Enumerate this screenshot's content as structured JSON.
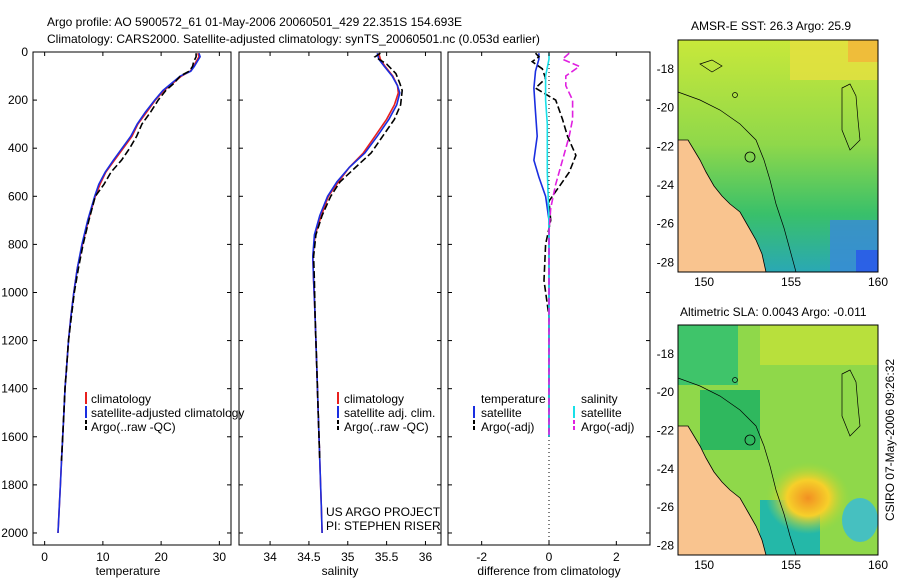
{
  "title_line1": "Argo profile: AO 5900572_61 01-May-2006 20060501_429 22.351S 154.693E",
  "title_line2": "Climatology: CARS2000. Satellite-adjusted climatology: synTS_20060501.nc (0.053d earlier)",
  "side_stamp": "CSIRO 07-May-2006 09:26:32",
  "colors": {
    "climatology": "#e8201e",
    "satellite": "#1a2ee0",
    "argo": "#000000",
    "sat_sal": "#18e0e8",
    "argo_sal": "#e020e0"
  },
  "chart_data": [
    {
      "type": "line",
      "xlabel": "temperature",
      "xlim": [
        -2,
        32
      ],
      "xticks": [
        0,
        10,
        20,
        30
      ],
      "ylim": [
        2050,
        0
      ],
      "yticks": [
        0,
        200,
        400,
        600,
        800,
        1000,
        1200,
        1400,
        1600,
        1800,
        2000
      ],
      "legend": [
        "climatology",
        "satellite-adjusted climatology",
        "Argo(..raw -QC)"
      ],
      "series": [
        {
          "name": "climatology",
          "color": "climatology",
          "dash": false,
          "points": [
            [
              26.3,
              5
            ],
            [
              26.5,
              20
            ],
            [
              26,
              40
            ],
            [
              25.6,
              60
            ],
            [
              25,
              80
            ],
            [
              23.5,
              100
            ],
            [
              22,
              130
            ],
            [
              20.5,
              160
            ],
            [
              19,
              200
            ],
            [
              17.5,
              250
            ],
            [
              16,
              300
            ],
            [
              15,
              350
            ],
            [
              13.5,
              400
            ],
            [
              12,
              450
            ],
            [
              10.5,
              500
            ],
            [
              9.5,
              550
            ],
            [
              8.7,
              600
            ],
            [
              7.5,
              700
            ],
            [
              6.5,
              800
            ],
            [
              5.6,
              900
            ],
            [
              5,
              1000
            ],
            [
              4.5,
              1100
            ],
            [
              4.1,
              1200
            ],
            [
              3.8,
              1300
            ],
            [
              3.5,
              1400
            ],
            [
              3.3,
              1500
            ],
            [
              3.1,
              1600
            ],
            [
              2.9,
              1700
            ],
            [
              2.7,
              1800
            ],
            [
              2.5,
              1900
            ],
            [
              2.3,
              2000
            ]
          ]
        },
        {
          "name": "satellite",
          "color": "satellite",
          "dash": false,
          "points": [
            [
              26.5,
              5
            ],
            [
              26.7,
              20
            ],
            [
              26.2,
              40
            ],
            [
              25.7,
              60
            ],
            [
              25.1,
              80
            ],
            [
              23.3,
              100
            ],
            [
              21.8,
              130
            ],
            [
              20.3,
              160
            ],
            [
              18.9,
              200
            ],
            [
              17.3,
              250
            ],
            [
              15.9,
              300
            ],
            [
              14.8,
              350
            ],
            [
              13.3,
              400
            ],
            [
              11.8,
              450
            ],
            [
              10.4,
              500
            ],
            [
              9.3,
              550
            ],
            [
              8.6,
              600
            ],
            [
              7.4,
              700
            ],
            [
              6.4,
              800
            ],
            [
              5.6,
              900
            ],
            [
              5,
              1000
            ],
            [
              4.5,
              1100
            ],
            [
              4.1,
              1200
            ],
            [
              3.8,
              1300
            ],
            [
              3.5,
              1400
            ],
            [
              3.3,
              1500
            ],
            [
              3.1,
              1600
            ],
            [
              2.9,
              1700
            ],
            [
              2.7,
              1800
            ],
            [
              2.5,
              1900
            ],
            [
              2.3,
              2000
            ]
          ]
        },
        {
          "name": "Argo",
          "color": "argo",
          "dash": true,
          "points": [
            [
              26,
              5
            ],
            [
              26,
              20
            ],
            [
              25.6,
              40
            ],
            [
              25.4,
              60
            ],
            [
              24.8,
              80
            ],
            [
              23.3,
              100
            ],
            [
              22.2,
              130
            ],
            [
              20.8,
              160
            ],
            [
              19.5,
              200
            ],
            [
              18.2,
              250
            ],
            [
              16.7,
              300
            ],
            [
              15.8,
              350
            ],
            [
              14.6,
              400
            ],
            [
              13.2,
              450
            ],
            [
              11.4,
              500
            ],
            [
              10.2,
              550
            ],
            [
              8.7,
              600
            ],
            [
              7.6,
              700
            ],
            [
              6.6,
              800
            ],
            [
              5.8,
              900
            ],
            [
              5.1,
              1000
            ],
            [
              4.6,
              1100
            ],
            [
              4.1,
              1200
            ],
            [
              3.8,
              1300
            ],
            [
              3.5,
              1400
            ],
            [
              3.3,
              1500
            ],
            [
              3.1,
              1600
            ],
            [
              2.9,
              1700
            ]
          ]
        }
      ]
    },
    {
      "type": "line",
      "xlabel": "salinity",
      "xlim": [
        33.6,
        36.2
      ],
      "xticks": [
        34,
        34.5,
        35,
        35.5,
        36
      ],
      "ylim": [
        2050,
        0
      ],
      "legend": [
        "climatology",
        "satellite adj. clim.",
        "Argo(..raw -QC)"
      ],
      "annotation": [
        "US ARGO PROJECT",
        "PI: STEPHEN RISER"
      ],
      "series": [
        {
          "name": "climatology",
          "color": "climatology",
          "dash": false,
          "points": [
            [
              35.4,
              5
            ],
            [
              35.42,
              30
            ],
            [
              35.48,
              60
            ],
            [
              35.58,
              100
            ],
            [
              35.64,
              140
            ],
            [
              35.65,
              170
            ],
            [
              35.6,
              220
            ],
            [
              35.5,
              280
            ],
            [
              35.35,
              350
            ],
            [
              35.2,
              420
            ],
            [
              35.02,
              480
            ],
            [
              34.88,
              540
            ],
            [
              34.75,
              600
            ],
            [
              34.66,
              680
            ],
            [
              34.58,
              760
            ],
            [
              34.55,
              850
            ],
            [
              34.56,
              950
            ],
            [
              34.58,
              1100
            ],
            [
              34.6,
              1300
            ],
            [
              34.62,
              1500
            ],
            [
              34.64,
              1700
            ],
            [
              34.66,
              1900
            ],
            [
              34.67,
              2000
            ]
          ]
        },
        {
          "name": "satellite",
          "color": "satellite",
          "dash": false,
          "points": [
            [
              35.38,
              5
            ],
            [
              35.4,
              30
            ],
            [
              35.47,
              60
            ],
            [
              35.57,
              100
            ],
            [
              35.64,
              140
            ],
            [
              35.67,
              170
            ],
            [
              35.63,
              220
            ],
            [
              35.53,
              280
            ],
            [
              35.38,
              350
            ],
            [
              35.22,
              420
            ],
            [
              35.02,
              480
            ],
            [
              34.86,
              540
            ],
            [
              34.74,
              600
            ],
            [
              34.64,
              680
            ],
            [
              34.57,
              760
            ],
            [
              34.55,
              850
            ],
            [
              34.56,
              950
            ],
            [
              34.58,
              1100
            ],
            [
              34.6,
              1300
            ],
            [
              34.62,
              1500
            ],
            [
              34.64,
              1700
            ],
            [
              34.66,
              1900
            ],
            [
              34.67,
              2000
            ]
          ]
        },
        {
          "name": "Argo",
          "color": "argo",
          "dash": true,
          "points": [
            [
              35.42,
              5
            ],
            [
              35.35,
              20
            ],
            [
              35.5,
              50
            ],
            [
              35.62,
              90
            ],
            [
              35.67,
              130
            ],
            [
              35.7,
              160
            ],
            [
              35.68,
              220
            ],
            [
              35.6,
              280
            ],
            [
              35.45,
              350
            ],
            [
              35.3,
              420
            ],
            [
              35.1,
              480
            ],
            [
              34.9,
              540
            ],
            [
              34.78,
              600
            ],
            [
              34.67,
              680
            ],
            [
              34.59,
              760
            ],
            [
              34.56,
              850
            ],
            [
              34.57,
              950
            ],
            [
              34.58,
              1100
            ],
            [
              34.6,
              1300
            ],
            [
              34.62,
              1500
            ],
            [
              34.64,
              1700
            ]
          ]
        }
      ]
    },
    {
      "type": "line",
      "xlabel": "difference from climatology",
      "xlim": [
        -3,
        3
      ],
      "xticks": [
        -2,
        0,
        2
      ],
      "ylim": [
        2050,
        0
      ],
      "legend_temperature": [
        "temperature",
        "satellite",
        "Argo(-adj)"
      ],
      "legend_salinity": [
        "salinity",
        "satellite",
        "Argo(-adj)"
      ],
      "series": [
        {
          "name": "temperature satellite",
          "color": "satellite",
          "dash": false,
          "points": [
            [
              -0.3,
              5
            ],
            [
              -0.3,
              30
            ],
            [
              -0.4,
              80
            ],
            [
              -0.45,
              150
            ],
            [
              -0.4,
              250
            ],
            [
              -0.35,
              350
            ],
            [
              -0.45,
              450
            ],
            [
              -0.3,
              520
            ],
            [
              -0.1,
              600
            ],
            [
              0,
              700
            ],
            [
              0,
              800
            ],
            [
              0,
              1000
            ],
            [
              0,
              1300
            ],
            [
              0,
              1600
            ]
          ]
        },
        {
          "name": "temperature Argo",
          "color": "argo",
          "dash": true,
          "points": [
            [
              -0.4,
              5
            ],
            [
              -0.3,
              20
            ],
            [
              -0.5,
              40
            ],
            [
              -0.2,
              70
            ],
            [
              -0.1,
              110
            ],
            [
              -0.4,
              150
            ],
            [
              0.2,
              200
            ],
            [
              0.4,
              280
            ],
            [
              0.55,
              350
            ],
            [
              0.8,
              430
            ],
            [
              0.6,
              500
            ],
            [
              0.3,
              560
            ],
            [
              0,
              620
            ],
            [
              0.05,
              700
            ],
            [
              -0.1,
              800
            ],
            [
              -0.15,
              950
            ],
            [
              0,
              1100
            ],
            [
              0,
              1300
            ],
            [
              0,
              1600
            ]
          ]
        },
        {
          "name": "salinity satellite",
          "color": "sat_sal",
          "dash": false,
          "points": [
            [
              0,
              5
            ],
            [
              0,
              30
            ],
            [
              -0.1,
              100
            ],
            [
              -0.1,
              200
            ],
            [
              -0.05,
              300
            ],
            [
              -0.05,
              500
            ],
            [
              0,
              700
            ],
            [
              0,
              1000
            ],
            [
              0,
              1400
            ],
            [
              0,
              1600
            ]
          ]
        },
        {
          "name": "salinity Argo",
          "color": "argo_sal",
          "dash": true,
          "points": [
            [
              0.6,
              5
            ],
            [
              0.4,
              30
            ],
            [
              0.9,
              60
            ],
            [
              0.5,
              100
            ],
            [
              0.5,
              140
            ],
            [
              0.7,
              200
            ],
            [
              0.7,
              280
            ],
            [
              0.6,
              350
            ],
            [
              0.4,
              450
            ],
            [
              0.2,
              550
            ],
            [
              0.05,
              650
            ],
            [
              0,
              750
            ],
            [
              0,
              1000
            ],
            [
              0,
              1600
            ]
          ]
        }
      ]
    }
  ],
  "maps": [
    {
      "title": "AMSR-E SST: 26.3 Argo: 25.9",
      "xticks": [
        "150",
        "155",
        "160"
      ],
      "yticks": [
        "-18",
        "-20",
        "-22",
        "-24",
        "-26",
        "-28"
      ]
    },
    {
      "title": "Altimetric SLA: 0.0043 Argo: -0.011",
      "xticks": [
        "150",
        "155",
        "160"
      ],
      "yticks": [
        "-18",
        "-20",
        "-22",
        "-24",
        "-26",
        "-28"
      ]
    }
  ],
  "y_tick_labels": [
    "0",
    "200",
    "400",
    "600",
    "800",
    "1000",
    "1200",
    "1400",
    "1600",
    "1800",
    "2000"
  ]
}
